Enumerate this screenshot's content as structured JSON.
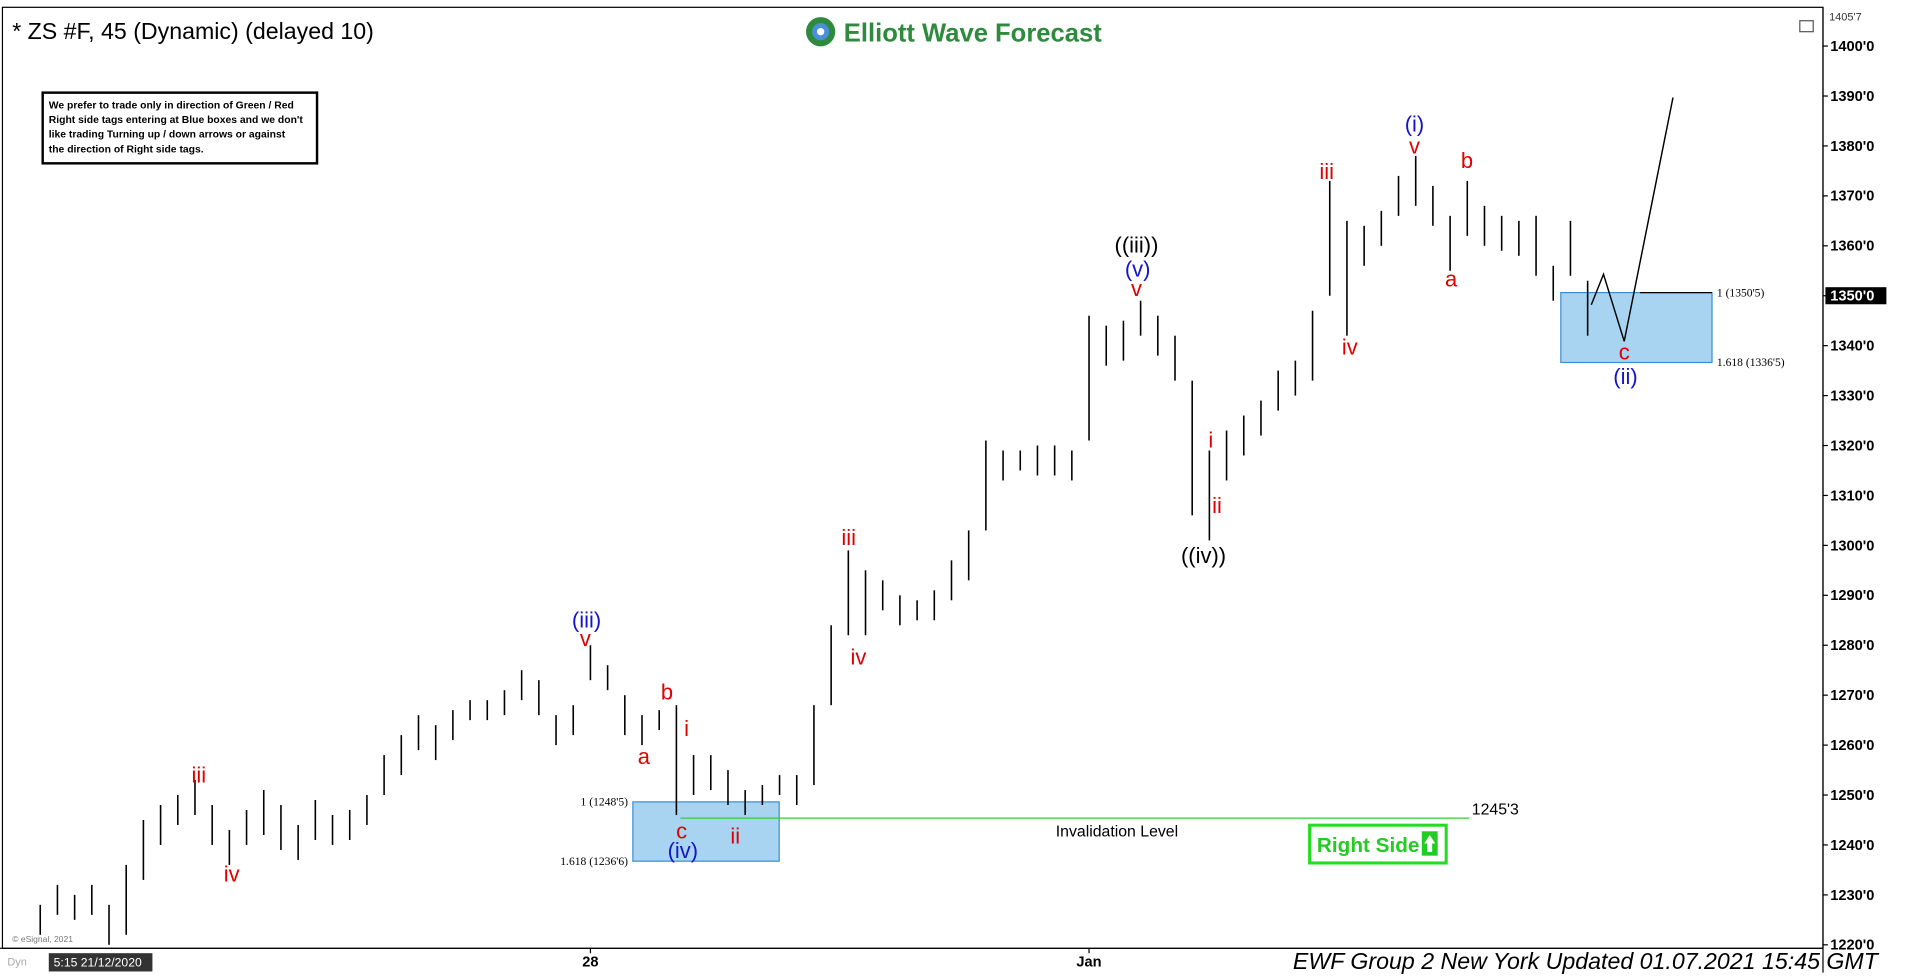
{
  "chart_data": {
    "type": "hlc-bars",
    "title": "* ZS #F, 45 (Dynamic) (delayed 10)",
    "logo": "Elliott Wave Forecast",
    "note": [
      "We prefer to trade only in direction of Green / Red",
      "Right side tags entering at Blue boxes and we don't",
      "like trading Turning up / down arrows or against",
      "the direction of Right side tags."
    ],
    "right_side": "Right Side",
    "footer": "EWF Group 2 New York Updated 01.07.2021 15:45 GMT",
    "copyright": "© eSignal, 2021",
    "cursor_date": "5:15 21/12/2020",
    "corner": "Dyn",
    "color": "#000000",
    "categories": [
      null,
      null,
      null,
      null,
      null,
      null,
      null,
      null,
      null,
      null,
      null,
      null,
      null,
      null,
      null,
      null,
      null,
      null,
      null,
      null,
      null,
      null,
      null,
      null,
      null,
      null,
      null,
      null,
      null,
      null,
      null,
      null,
      "28",
      null,
      null,
      null,
      null,
      null,
      null,
      null,
      null,
      null,
      null,
      null,
      null,
      null,
      null,
      null,
      null,
      null,
      null,
      null,
      null,
      null,
      null,
      null,
      null,
      null,
      null,
      null,
      null,
      "Jan",
      null,
      null,
      null,
      null,
      null,
      null,
      null,
      null,
      null,
      null,
      null,
      null,
      null,
      null,
      null,
      null,
      null,
      null,
      null,
      null,
      null,
      null,
      null,
      null,
      null,
      null,
      null,
      null,
      null
    ],
    "high": [
      1228,
      1232,
      1230,
      1232,
      1228,
      1236,
      1245,
      1248,
      1250,
      1253,
      1248,
      1243,
      1247,
      1251,
      1248,
      1244,
      1249,
      1246,
      1247,
      1250,
      1258,
      1262,
      1266,
      1264,
      1267,
      1269,
      1269,
      1271,
      1275,
      1273,
      1266,
      1268,
      1280,
      1276,
      1270,
      1266,
      1267,
      1268,
      1258,
      1258,
      1255,
      1251,
      1252,
      1254,
      1254,
      1268,
      1284,
      1299,
      1295,
      1293,
      1290,
      1289,
      1291,
      1297,
      1303,
      1321,
      1319,
      1319,
      1320,
      1320,
      1319,
      1346,
      1344,
      1345,
      1349,
      1346,
      1342,
      1333,
      1319,
      1323,
      1326,
      1329,
      1335,
      1337,
      1347,
      1373,
      1365,
      1364,
      1367,
      1374,
      1378,
      1372,
      1366,
      1373,
      1368,
      1366,
      1365,
      1366,
      1356,
      1365,
      1353
    ],
    "low": [
      1222,
      1226,
      1225,
      1226,
      1220,
      1222,
      1233,
      1240,
      1244,
      1246,
      1240,
      1236,
      1240,
      1242,
      1239,
      1237,
      1241,
      1240,
      1241,
      1244,
      1250,
      1254,
      1259,
      1257,
      1261,
      1265,
      1265,
      1266,
      1269,
      1266,
      1260,
      1262,
      1273,
      1271,
      1262,
      1260,
      1263,
      1246,
      1250,
      1251,
      1248,
      1246,
      1248,
      1250,
      1248,
      1252,
      1268,
      1282,
      1282,
      1287,
      1284,
      1285,
      1285,
      1289,
      1293,
      1303,
      1313,
      1315,
      1314,
      1314,
      1313,
      1321,
      1336,
      1337,
      1342,
      1338,
      1333,
      1306,
      1301,
      1313,
      1318,
      1322,
      1327,
      1330,
      1333,
      1350,
      1342,
      1356,
      1360,
      1366,
      1368,
      1364,
      1355,
      1362,
      1360,
      1359,
      1358,
      1354,
      1349,
      1354,
      1342
    ],
    "ylim": [
      1219.3,
      1406.3
    ],
    "yticks": [
      {
        "value": 1220,
        "label": "1220'0"
      },
      {
        "value": 1230,
        "label": "1230'0"
      },
      {
        "value": 1240,
        "label": "1240'0"
      },
      {
        "value": 1250,
        "label": "1250'0"
      },
      {
        "value": 1260,
        "label": "1260'0"
      },
      {
        "value": 1270,
        "label": "1270'0"
      },
      {
        "value": 1280,
        "label": "1280'0"
      },
      {
        "value": 1290,
        "label": "1290'0"
      },
      {
        "value": 1300,
        "label": "1300'0"
      },
      {
        "value": 1310,
        "label": "1310'0"
      },
      {
        "value": 1320,
        "label": "1320'0"
      },
      {
        "value": 1330,
        "label": "1330'0"
      },
      {
        "value": 1340,
        "label": "1340'0"
      },
      {
        "value": 1350,
        "label": "1350'0"
      },
      {
        "value": 1360,
        "label": "1360'0"
      },
      {
        "value": 1370,
        "label": "1370'0"
      },
      {
        "value": 1380,
        "label": "1380'0"
      },
      {
        "value": 1390,
        "label": "1390'0"
      },
      {
        "value": 1400,
        "label": "1400'0"
      }
    ],
    "top_price": {
      "value": 1405.875,
      "label": "1405'7"
    },
    "last_price": {
      "value": 1350,
      "label": "1350'0"
    },
    "zones": [
      {
        "levels": [
          {
            "value": 1248.625,
            "label": "1 (1248'5)"
          },
          {
            "value": 1236.75,
            "label": "1.618 (1236'6)"
          }
        ]
      },
      {
        "levels": [
          {
            "value": 1350.625,
            "label": "1 (1350'5)"
          },
          {
            "value": 1336.625,
            "label": "1.618 (1336'5)"
          }
        ]
      }
    ],
    "invalidation": {
      "value": 1245.375,
      "label": "1245'3",
      "text": "Invalidation Level"
    },
    "wave_labels": [
      "iii",
      "iv",
      "(iii)",
      "v",
      "a",
      "b",
      "i",
      "c",
      "(iv)",
      "ii",
      "iii",
      "iv",
      "((iii))",
      "(v)",
      "v",
      "i",
      "ii",
      "((iv))",
      "iii",
      "iv",
      "(i)",
      "v",
      "b",
      "a",
      "c",
      "(ii)"
    ]
  }
}
